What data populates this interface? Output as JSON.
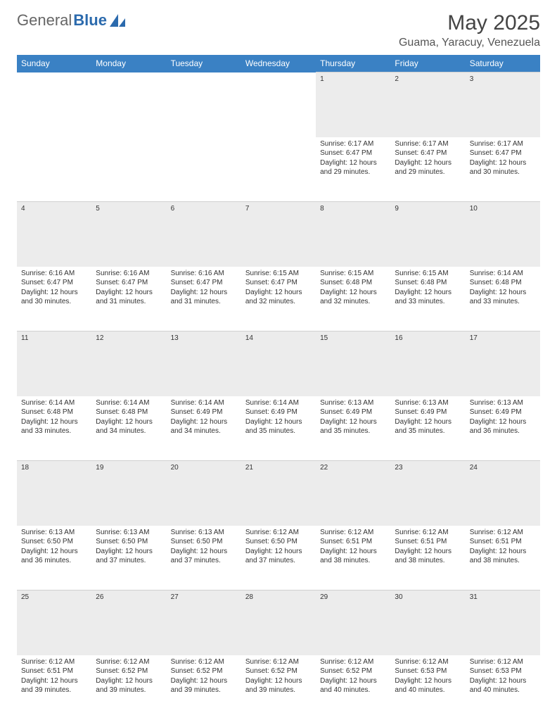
{
  "logo": {
    "text_general": "General",
    "text_blue": "Blue"
  },
  "header": {
    "month_title": "May 2025",
    "location": "Guama, Yaracuy, Venezuela"
  },
  "colors": {
    "header_bg": "#3a81c4",
    "header_text": "#ffffff",
    "daynum_bg": "#ececec",
    "cell_text": "#333333",
    "page_bg": "#ffffff",
    "logo_blue": "#2b6aad"
  },
  "typography": {
    "month_title_fontsize": 30,
    "location_fontsize": 16,
    "dayheader_fontsize": 12,
    "daynum_fontsize": 11,
    "detail_fontsize": 10
  },
  "columns": [
    "Sunday",
    "Monday",
    "Tuesday",
    "Wednesday",
    "Thursday",
    "Friday",
    "Saturday"
  ],
  "weeks": [
    {
      "row": 0,
      "days": [
        null,
        null,
        null,
        null,
        {
          "num": "1",
          "sunrise": "Sunrise: 6:17 AM",
          "sunset": "Sunset: 6:47 PM",
          "daylight": "Daylight: 12 hours and 29 minutes."
        },
        {
          "num": "2",
          "sunrise": "Sunrise: 6:17 AM",
          "sunset": "Sunset: 6:47 PM",
          "daylight": "Daylight: 12 hours and 29 minutes."
        },
        {
          "num": "3",
          "sunrise": "Sunrise: 6:17 AM",
          "sunset": "Sunset: 6:47 PM",
          "daylight": "Daylight: 12 hours and 30 minutes."
        }
      ]
    },
    {
      "row": 1,
      "days": [
        {
          "num": "4",
          "sunrise": "Sunrise: 6:16 AM",
          "sunset": "Sunset: 6:47 PM",
          "daylight": "Daylight: 12 hours and 30 minutes."
        },
        {
          "num": "5",
          "sunrise": "Sunrise: 6:16 AM",
          "sunset": "Sunset: 6:47 PM",
          "daylight": "Daylight: 12 hours and 31 minutes."
        },
        {
          "num": "6",
          "sunrise": "Sunrise: 6:16 AM",
          "sunset": "Sunset: 6:47 PM",
          "daylight": "Daylight: 12 hours and 31 minutes."
        },
        {
          "num": "7",
          "sunrise": "Sunrise: 6:15 AM",
          "sunset": "Sunset: 6:47 PM",
          "daylight": "Daylight: 12 hours and 32 minutes."
        },
        {
          "num": "8",
          "sunrise": "Sunrise: 6:15 AM",
          "sunset": "Sunset: 6:48 PM",
          "daylight": "Daylight: 12 hours and 32 minutes."
        },
        {
          "num": "9",
          "sunrise": "Sunrise: 6:15 AM",
          "sunset": "Sunset: 6:48 PM",
          "daylight": "Daylight: 12 hours and 33 minutes."
        },
        {
          "num": "10",
          "sunrise": "Sunrise: 6:14 AM",
          "sunset": "Sunset: 6:48 PM",
          "daylight": "Daylight: 12 hours and 33 minutes."
        }
      ]
    },
    {
      "row": 2,
      "days": [
        {
          "num": "11",
          "sunrise": "Sunrise: 6:14 AM",
          "sunset": "Sunset: 6:48 PM",
          "daylight": "Daylight: 12 hours and 33 minutes."
        },
        {
          "num": "12",
          "sunrise": "Sunrise: 6:14 AM",
          "sunset": "Sunset: 6:48 PM",
          "daylight": "Daylight: 12 hours and 34 minutes."
        },
        {
          "num": "13",
          "sunrise": "Sunrise: 6:14 AM",
          "sunset": "Sunset: 6:49 PM",
          "daylight": "Daylight: 12 hours and 34 minutes."
        },
        {
          "num": "14",
          "sunrise": "Sunrise: 6:14 AM",
          "sunset": "Sunset: 6:49 PM",
          "daylight": "Daylight: 12 hours and 35 minutes."
        },
        {
          "num": "15",
          "sunrise": "Sunrise: 6:13 AM",
          "sunset": "Sunset: 6:49 PM",
          "daylight": "Daylight: 12 hours and 35 minutes."
        },
        {
          "num": "16",
          "sunrise": "Sunrise: 6:13 AM",
          "sunset": "Sunset: 6:49 PM",
          "daylight": "Daylight: 12 hours and 35 minutes."
        },
        {
          "num": "17",
          "sunrise": "Sunrise: 6:13 AM",
          "sunset": "Sunset: 6:49 PM",
          "daylight": "Daylight: 12 hours and 36 minutes."
        }
      ]
    },
    {
      "row": 3,
      "days": [
        {
          "num": "18",
          "sunrise": "Sunrise: 6:13 AM",
          "sunset": "Sunset: 6:50 PM",
          "daylight": "Daylight: 12 hours and 36 minutes."
        },
        {
          "num": "19",
          "sunrise": "Sunrise: 6:13 AM",
          "sunset": "Sunset: 6:50 PM",
          "daylight": "Daylight: 12 hours and 37 minutes."
        },
        {
          "num": "20",
          "sunrise": "Sunrise: 6:13 AM",
          "sunset": "Sunset: 6:50 PM",
          "daylight": "Daylight: 12 hours and 37 minutes."
        },
        {
          "num": "21",
          "sunrise": "Sunrise: 6:12 AM",
          "sunset": "Sunset: 6:50 PM",
          "daylight": "Daylight: 12 hours and 37 minutes."
        },
        {
          "num": "22",
          "sunrise": "Sunrise: 6:12 AM",
          "sunset": "Sunset: 6:51 PM",
          "daylight": "Daylight: 12 hours and 38 minutes."
        },
        {
          "num": "23",
          "sunrise": "Sunrise: 6:12 AM",
          "sunset": "Sunset: 6:51 PM",
          "daylight": "Daylight: 12 hours and 38 minutes."
        },
        {
          "num": "24",
          "sunrise": "Sunrise: 6:12 AM",
          "sunset": "Sunset: 6:51 PM",
          "daylight": "Daylight: 12 hours and 38 minutes."
        }
      ]
    },
    {
      "row": 4,
      "days": [
        {
          "num": "25",
          "sunrise": "Sunrise: 6:12 AM",
          "sunset": "Sunset: 6:51 PM",
          "daylight": "Daylight: 12 hours and 39 minutes."
        },
        {
          "num": "26",
          "sunrise": "Sunrise: 6:12 AM",
          "sunset": "Sunset: 6:52 PM",
          "daylight": "Daylight: 12 hours and 39 minutes."
        },
        {
          "num": "27",
          "sunrise": "Sunrise: 6:12 AM",
          "sunset": "Sunset: 6:52 PM",
          "daylight": "Daylight: 12 hours and 39 minutes."
        },
        {
          "num": "28",
          "sunrise": "Sunrise: 6:12 AM",
          "sunset": "Sunset: 6:52 PM",
          "daylight": "Daylight: 12 hours and 39 minutes."
        },
        {
          "num": "29",
          "sunrise": "Sunrise: 6:12 AM",
          "sunset": "Sunset: 6:52 PM",
          "daylight": "Daylight: 12 hours and 40 minutes."
        },
        {
          "num": "30",
          "sunrise": "Sunrise: 6:12 AM",
          "sunset": "Sunset: 6:53 PM",
          "daylight": "Daylight: 12 hours and 40 minutes."
        },
        {
          "num": "31",
          "sunrise": "Sunrise: 6:12 AM",
          "sunset": "Sunset: 6:53 PM",
          "daylight": "Daylight: 12 hours and 40 minutes."
        }
      ]
    }
  ]
}
